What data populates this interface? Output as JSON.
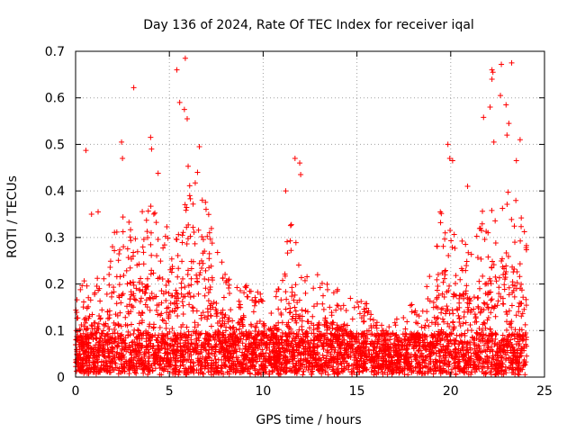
{
  "chart_data": {
    "type": "scatter",
    "title": "Day 136 of 2024, Rate Of TEC Index for receiver iqal",
    "xlabel": "GPS time / hours",
    "ylabel": "ROTI / TECUs",
    "xlim": [
      0,
      25
    ],
    "ylim": [
      0,
      0.7
    ],
    "x_ticks": [
      0,
      5,
      10,
      15,
      20,
      25
    ],
    "y_ticks": [
      0,
      0.1,
      0.2,
      0.3,
      0.4,
      0.5,
      0.6,
      0.7
    ],
    "x_tick_labels": [
      "0",
      "5",
      "10",
      "15",
      "20",
      "25"
    ],
    "y_tick_labels": [
      "0",
      "0.1",
      "0.2",
      "0.3",
      "0.4",
      "0.5",
      "0.6",
      "0.7"
    ],
    "grid": true,
    "marker": "+",
    "color": "#ff0000",
    "envelope": {
      "description": "approximate upper envelope of dense ROTI samples (hour, ROTI)",
      "points": [
        [
          0,
          0.17
        ],
        [
          0.5,
          0.2
        ],
        [
          1,
          0.22
        ],
        [
          1.5,
          0.2
        ],
        [
          2,
          0.3
        ],
        [
          2.5,
          0.36
        ],
        [
          3,
          0.33
        ],
        [
          3.5,
          0.35
        ],
        [
          4,
          0.37
        ],
        [
          4.5,
          0.35
        ],
        [
          5,
          0.33
        ],
        [
          5.5,
          0.3
        ],
        [
          6,
          0.4
        ],
        [
          6.5,
          0.42
        ],
        [
          7,
          0.36
        ],
        [
          7.5,
          0.27
        ],
        [
          8,
          0.22
        ],
        [
          8.5,
          0.18
        ],
        [
          9,
          0.2
        ],
        [
          9.5,
          0.19
        ],
        [
          10,
          0.17
        ],
        [
          10.5,
          0.16
        ],
        [
          11,
          0.22
        ],
        [
          11.5,
          0.34
        ],
        [
          12,
          0.25
        ],
        [
          12.5,
          0.2
        ],
        [
          13,
          0.19
        ],
        [
          13.5,
          0.2
        ],
        [
          14,
          0.18
        ],
        [
          14.5,
          0.17
        ],
        [
          15,
          0.16
        ],
        [
          15.5,
          0.15
        ],
        [
          16,
          0.12
        ],
        [
          16.5,
          0.1
        ],
        [
          17,
          0.11
        ],
        [
          17.5,
          0.13
        ],
        [
          18,
          0.15
        ],
        [
          18.5,
          0.18
        ],
        [
          19,
          0.25
        ],
        [
          19.5,
          0.36
        ],
        [
          20,
          0.33
        ],
        [
          20.5,
          0.28
        ],
        [
          21,
          0.3
        ],
        [
          21.5,
          0.34
        ],
        [
          22,
          0.37
        ],
        [
          22.5,
          0.42
        ],
        [
          23,
          0.4
        ],
        [
          23.5,
          0.38
        ],
        [
          24,
          0.3
        ]
      ]
    },
    "notable_points": [
      [
        0.55,
        0.487
      ],
      [
        3.1,
        0.622
      ],
      [
        2.45,
        0.505
      ],
      [
        2.5,
        0.47
      ],
      [
        4.0,
        0.515
      ],
      [
        4.05,
        0.49
      ],
      [
        4.4,
        0.438
      ],
      [
        5.4,
        0.66
      ],
      [
        5.55,
        0.59
      ],
      [
        5.85,
        0.685
      ],
      [
        5.8,
        0.575
      ],
      [
        5.95,
        0.555
      ],
      [
        6.0,
        0.453
      ],
      [
        6.6,
        0.495
      ],
      [
        6.5,
        0.44
      ],
      [
        11.7,
        0.47
      ],
      [
        11.95,
        0.46
      ],
      [
        12.0,
        0.435
      ],
      [
        11.2,
        0.4
      ],
      [
        12.9,
        0.22
      ],
      [
        19.85,
        0.5
      ],
      [
        19.95,
        0.47
      ],
      [
        20.1,
        0.465
      ],
      [
        21.75,
        0.558
      ],
      [
        22.1,
        0.58
      ],
      [
        22.2,
        0.66
      ],
      [
        22.2,
        0.64
      ],
      [
        22.25,
        0.655
      ],
      [
        22.7,
        0.672
      ],
      [
        23.25,
        0.675
      ],
      [
        22.65,
        0.605
      ],
      [
        22.95,
        0.585
      ],
      [
        23.0,
        0.52
      ],
      [
        22.3,
        0.505
      ],
      [
        23.5,
        0.465
      ],
      [
        23.7,
        0.51
      ],
      [
        23.1,
        0.545
      ],
      [
        20.9,
        0.41
      ],
      [
        1.2,
        0.355
      ],
      [
        0.85,
        0.35
      ]
    ]
  }
}
